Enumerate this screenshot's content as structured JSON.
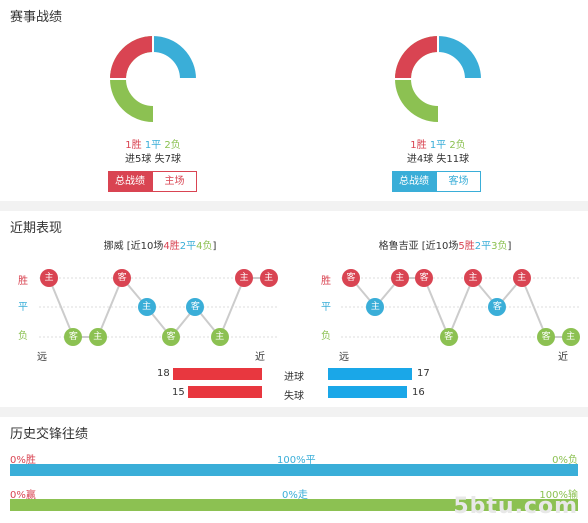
{
  "section1": {
    "title": "赛事战绩",
    "left": {
      "wins_label": "1胜",
      "draws_label": "1平",
      "losses_label": "2负",
      "goals_line": "进5球 失7球",
      "btn_active": "总战绩",
      "btn_inactive": "主场",
      "wins": 1,
      "draws": 1,
      "losses": 2
    },
    "right": {
      "wins_label": "1胜",
      "draws_label": "1平",
      "losses_label": "2负",
      "goals_line": "进4球 失11球",
      "btn_active": "总战绩",
      "btn_inactive": "客场",
      "wins": 1,
      "draws": 1,
      "losses": 2
    }
  },
  "section2": {
    "title": "近期表现",
    "left": {
      "team": "挪威",
      "summary_prefix": " [近10场",
      "w": "4胜",
      "d": "2平",
      "l": "4负",
      "summary_suffix": "]",
      "y_win": "胜",
      "y_draw": "平",
      "y_loss": "负",
      "far": "远",
      "near": "近",
      "results": [
        "主",
        "客",
        "主",
        "客",
        "主",
        "客",
        "客",
        "主",
        "主",
        "主"
      ]
    },
    "right": {
      "team": "格鲁吉亚",
      "summary_prefix": " [近10场",
      "w": "5胜",
      "d": "2平",
      "l": "3负",
      "summary_suffix": "]",
      "y_win": "胜",
      "y_draw": "平",
      "y_loss": "负",
      "far": "远",
      "near": "近",
      "results": [
        "客",
        "主",
        "主",
        "客",
        "客",
        "主",
        "客",
        "主",
        "客",
        "主"
      ]
    },
    "goals": {
      "label": "进球",
      "left": "18",
      "right": "17"
    },
    "conceded": {
      "label": "失球",
      "left": "15",
      "right": "16"
    }
  },
  "section3": {
    "title": "历史交锋往绩",
    "row1": {
      "left": "0%胜",
      "mid": "100%平",
      "right": "0%负"
    },
    "row2": {
      "left": "0%赢",
      "mid": "0%走",
      "right": "100%输"
    }
  },
  "watermark": "5btu.com",
  "colors": {
    "win": "#d94452",
    "draw": "#3aaed8",
    "loss": "#8cc152"
  }
}
